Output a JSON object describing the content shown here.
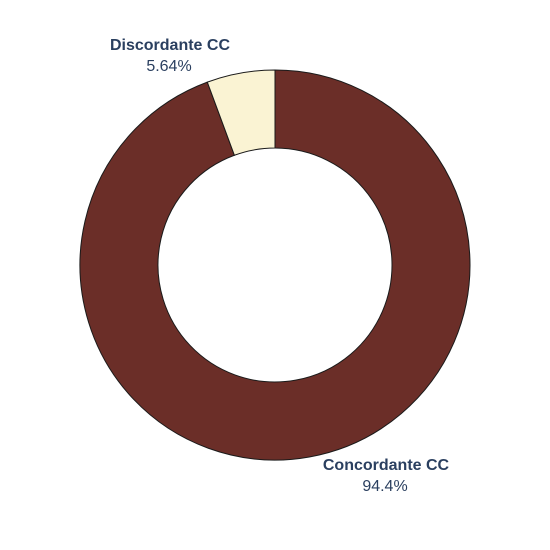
{
  "chart_data": {
    "type": "pie",
    "hole": 0.6,
    "title": "",
    "slices": [
      {
        "label": "Concordante CC",
        "value": 94.36,
        "display": "94.4%",
        "color": "#6b2e28"
      },
      {
        "label": "Discordante CC",
        "value": 5.64,
        "display": "5.64%",
        "color": "#faf3d3"
      }
    ],
    "legend": "none"
  }
}
